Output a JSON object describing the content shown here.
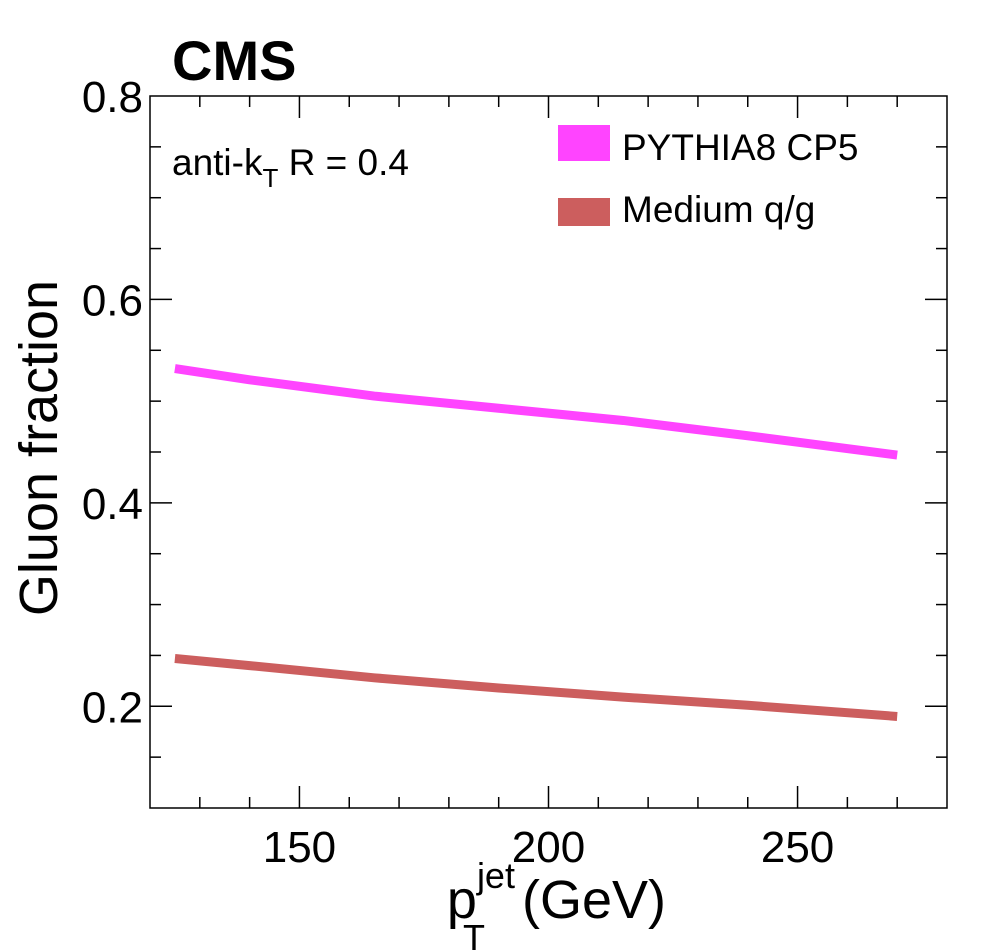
{
  "experiment_label": "CMS",
  "jet_label": {
    "main": "anti-k",
    "sub": "T",
    "rest": " R = 0.4"
  },
  "colors": {
    "pythia": "#ff44ff",
    "medium": "#cc5e5e",
    "axis": "#000000"
  },
  "chart_data": {
    "type": "line",
    "title": "",
    "xlabel": {
      "main": "p",
      "sup": "jet",
      "sub": "T",
      "unit": " (GeV)"
    },
    "ylabel": "Gluon fraction",
    "xlim": [
      120,
      280
    ],
    "ylim": [
      0.1,
      0.8
    ],
    "xticks": [
      150,
      200,
      250
    ],
    "xtick_labels": [
      "150",
      "200",
      "250"
    ],
    "yticks": [
      0.2,
      0.4,
      0.6,
      0.8
    ],
    "ytick_labels": [
      "0.2",
      "0.4",
      "0.6",
      "0.8"
    ],
    "legend_position": "top-right",
    "series": [
      {
        "name": "PYTHIA8 CP5",
        "color": "#ff44ff",
        "x": [
          125,
          140,
          165,
          190,
          215,
          240,
          270
        ],
        "y": [
          0.532,
          0.521,
          0.505,
          0.493,
          0.481,
          0.466,
          0.447
        ]
      },
      {
        "name": "Medium q/g",
        "color": "#cc5e5e",
        "x": [
          125,
          140,
          165,
          190,
          215,
          240,
          270
        ],
        "y": [
          0.247,
          0.24,
          0.228,
          0.218,
          0.209,
          0.201,
          0.19
        ]
      }
    ]
  }
}
